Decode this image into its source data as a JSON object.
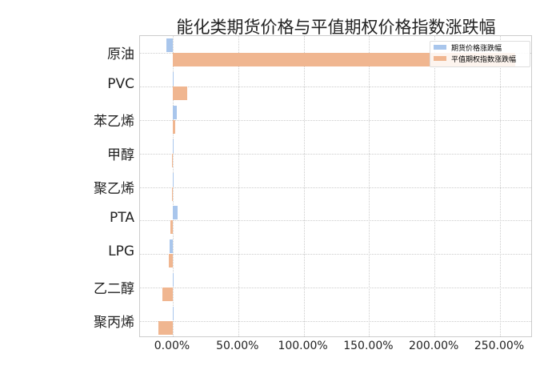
{
  "chart_data": {
    "type": "bar",
    "orientation": "horizontal",
    "title": "能化类期货价格与平值期权价格指数涨跌幅",
    "categories": [
      "原油",
      "PVC",
      "苯乙烯",
      "甲醇",
      "聚乙烯",
      "PTA",
      "LPG",
      "乙二醇",
      "聚丙烯"
    ],
    "series": [
      {
        "name": "期货价格涨跌幅",
        "color": "#a9c6ec",
        "values": [
          -4.7,
          0.2,
          3.0,
          0.1,
          0.1,
          3.5,
          -2.6,
          0.1,
          0.1
        ]
      },
      {
        "name": "平值期权指数涨跌幅",
        "color": "#f0b690",
        "values": [
          261.5,
          10.8,
          2.0,
          -0.5,
          -0.8,
          -2.0,
          -3.2,
          -8.1,
          -10.8
        ]
      }
    ],
    "xlabel": "",
    "ylabel": "",
    "xticks": [
      "0.00%",
      "50.00%",
      "100.00%",
      "150.00%",
      "200.00%",
      "250.00%"
    ],
    "xlim": [
      -25,
      275
    ],
    "grid": true,
    "legend_position": "upper right"
  }
}
